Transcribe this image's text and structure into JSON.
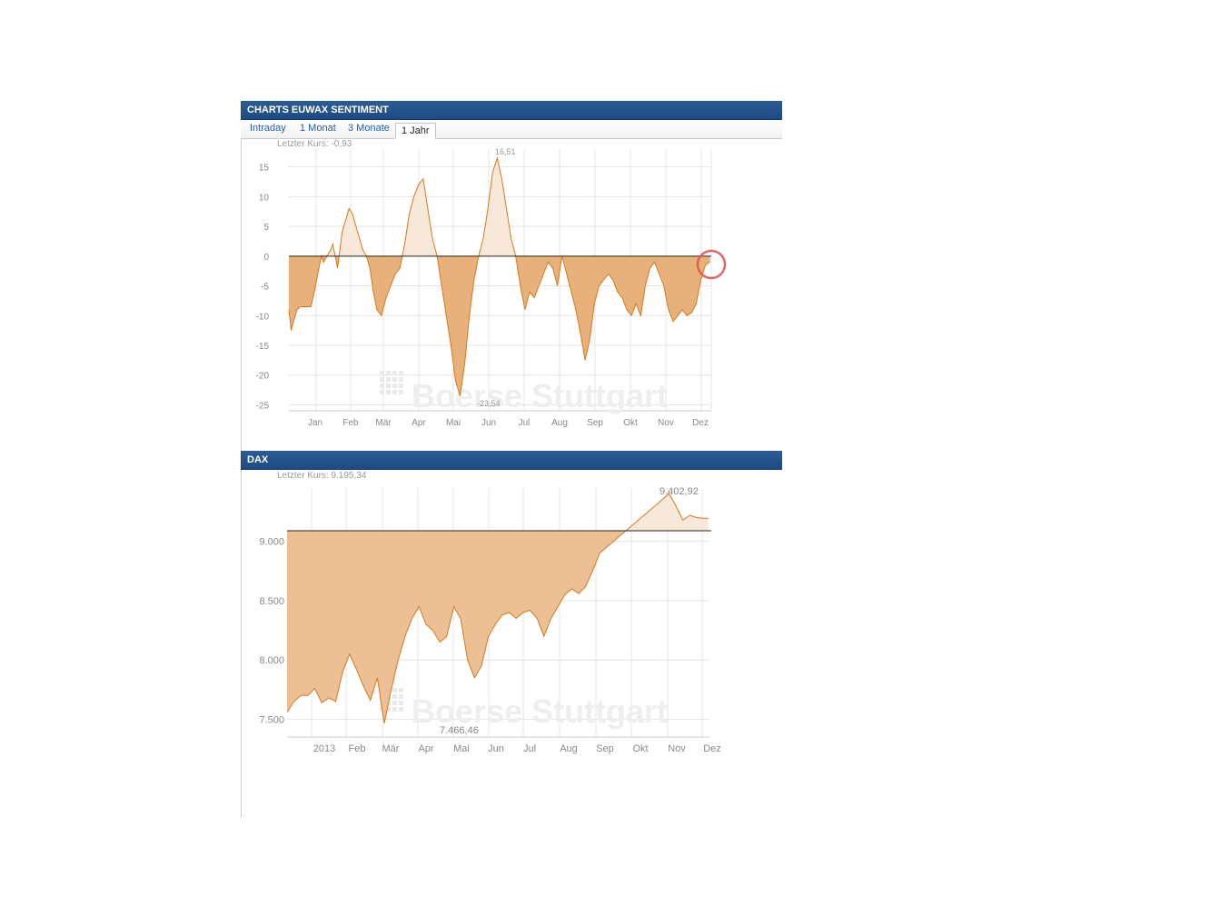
{
  "panel1": {
    "title": "CHARTS EUWAX SENTIMENT",
    "tabs": [
      "Intraday",
      "1 Monat",
      "3 Monate",
      "1 Jahr"
    ],
    "active_tab": "1 Jahr"
  },
  "panel2": {
    "title": "DAX"
  },
  "watermark": "Boerse Stuttgart",
  "colors": {
    "header": "#1f4c85",
    "fill": "#e8b07a",
    "line": "#d47a1c",
    "pos_fill": "#f8e8da"
  },
  "chart_data": [
    {
      "type": "area",
      "last_label": "Letzter Kurs: -0,93",
      "max_label": "16,51",
      "min_label": "-23,54",
      "ylim": [
        -26,
        18
      ],
      "yticks": [
        15,
        10,
        5,
        0,
        -5,
        -10,
        -15,
        -20,
        -25
      ],
      "ytick_labels": [
        "15",
        "10",
        "5",
        "0",
        "-5",
        "-10",
        "-15",
        "-20",
        "-25"
      ],
      "xtick_labels": [
        "Jan",
        "Feb",
        "Mär",
        "Apr",
        "Mai",
        "Jun",
        "Jul",
        "Aug",
        "Sep",
        "Okt",
        "Nov",
        "Dez"
      ],
      "baseline": 0,
      "x": [
        0,
        2,
        4,
        7,
        10,
        13,
        16,
        19,
        22,
        25,
        28,
        30,
        33,
        36,
        38,
        40,
        42,
        44,
        46,
        49,
        52,
        55,
        58,
        61,
        64,
        67,
        70,
        73,
        76,
        80,
        84,
        88,
        92,
        96,
        100,
        104,
        108,
        112,
        116,
        120,
        124,
        128,
        132,
        136,
        140,
        144,
        148,
        152,
        156,
        160,
        164,
        168,
        172,
        176,
        180,
        184,
        188,
        192,
        196,
        200,
        204,
        208,
        212,
        216,
        220,
        224,
        228,
        232,
        236,
        240,
        244,
        248,
        252,
        256,
        260,
        264,
        268,
        272,
        276,
        280,
        284,
        288,
        292,
        296,
        300,
        304,
        308,
        312,
        316,
        320,
        324,
        328,
        332,
        336,
        340,
        344,
        348,
        352,
        356,
        360,
        364
      ],
      "values": [
        -9,
        -12.5,
        -11,
        -9,
        -8.5,
        -8.5,
        -8.5,
        -8.5,
        -6,
        -3,
        0,
        -1,
        0,
        1,
        2,
        0,
        -2,
        1,
        4,
        6,
        8,
        7,
        5,
        3,
        1,
        0,
        -2,
        -6,
        -9,
        -10,
        -7,
        -5,
        -3,
        -2,
        2,
        7,
        10,
        12,
        13,
        8,
        3,
        0,
        -5,
        -10,
        -15,
        -21,
        -23.5,
        -18,
        -10,
        -4,
        0,
        3,
        8,
        14,
        16.5,
        13,
        8,
        3,
        0,
        -5,
        -9,
        -6,
        -7,
        -5,
        -3,
        -1,
        -2,
        -5,
        0,
        -3,
        -6,
        -9,
        -13,
        -17.5,
        -14,
        -8,
        -5,
        -4,
        -3,
        -4,
        -6,
        -7,
        -9,
        -10,
        -8,
        -10,
        -5,
        -2,
        -1,
        -3,
        -5,
        -9,
        -11,
        -10,
        -9,
        -10,
        -9.5,
        -8,
        -4,
        -1.5,
        -0.93
      ]
    },
    {
      "type": "area",
      "last_label": "Letzter Kurs:  9.195,34",
      "max_label": "9.402,92",
      "min_label": "7.466,46",
      "ylim": [
        7350,
        9450
      ],
      "yticks": [
        9000,
        8500,
        8000,
        7500
      ],
      "ytick_labels": [
        "9.000",
        "8.500",
        "8.000",
        "7.500"
      ],
      "xtick_labels": [
        "2013",
        "Feb",
        "Mär",
        "Apr",
        "Mai",
        "Jun",
        "Jul",
        "Aug",
        "Sep",
        "Okt",
        "Nov",
        "Dez"
      ],
      "baseline": 9090,
      "x": [
        0,
        6,
        12,
        18,
        24,
        30,
        36,
        42,
        48,
        54,
        60,
        66,
        72,
        78,
        84,
        90,
        96,
        102,
        108,
        114,
        120,
        126,
        132,
        138,
        144,
        150,
        156,
        162,
        168,
        174,
        180,
        186,
        192,
        198,
        204,
        210,
        216,
        222,
        228,
        234,
        240,
        246,
        252,
        258,
        264,
        270,
        276,
        282,
        288,
        294,
        300,
        306,
        312,
        318,
        324,
        330,
        336,
        342,
        348,
        354,
        360,
        364
      ],
      "values": [
        7560,
        7650,
        7700,
        7700,
        7760,
        7640,
        7680,
        7650,
        7900,
        8050,
        7920,
        7780,
        7660,
        7850,
        7466,
        7750,
        8000,
        8200,
        8350,
        8450,
        8300,
        8250,
        8150,
        8200,
        8450,
        8350,
        8000,
        7850,
        7950,
        8200,
        8300,
        8380,
        8400,
        8350,
        8400,
        8420,
        8350,
        8200,
        8350,
        8450,
        8550,
        8600,
        8560,
        8620,
        8750,
        8900,
        8950,
        9000,
        9050,
        9100,
        9150,
        9200,
        9250,
        9300,
        9350,
        9402.92,
        9300,
        9180,
        9220,
        9200,
        9195.34,
        9195.34
      ]
    }
  ]
}
